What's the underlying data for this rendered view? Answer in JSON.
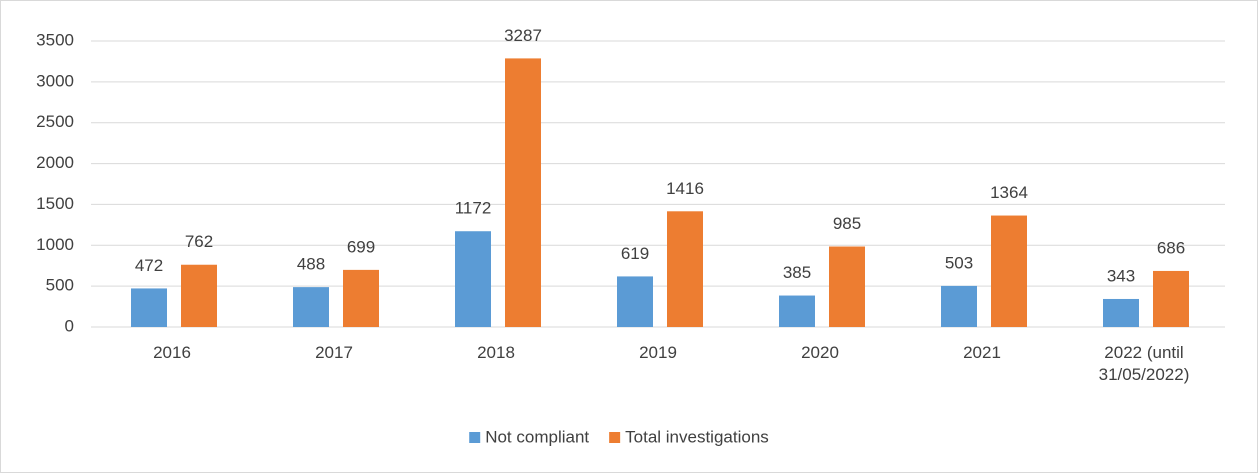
{
  "chart_data": {
    "type": "bar",
    "categories": [
      "2016",
      "2017",
      "2018",
      "2019",
      "2020",
      "2021",
      "2022 (until 31/05/2022)"
    ],
    "series": [
      {
        "name": "Not compliant",
        "color": "#5b9bd5",
        "values": [
          472,
          488,
          1172,
          619,
          385,
          503,
          343
        ]
      },
      {
        "name": "Total investigations",
        "color": "#ed7d31",
        "values": [
          762,
          699,
          3287,
          1416,
          985,
          1364,
          686
        ]
      }
    ],
    "ylim": [
      0,
      3500
    ],
    "yticks": [
      0,
      500,
      1000,
      1500,
      2000,
      2500,
      3000,
      3500
    ],
    "grid": true,
    "legend": "bottom"
  }
}
